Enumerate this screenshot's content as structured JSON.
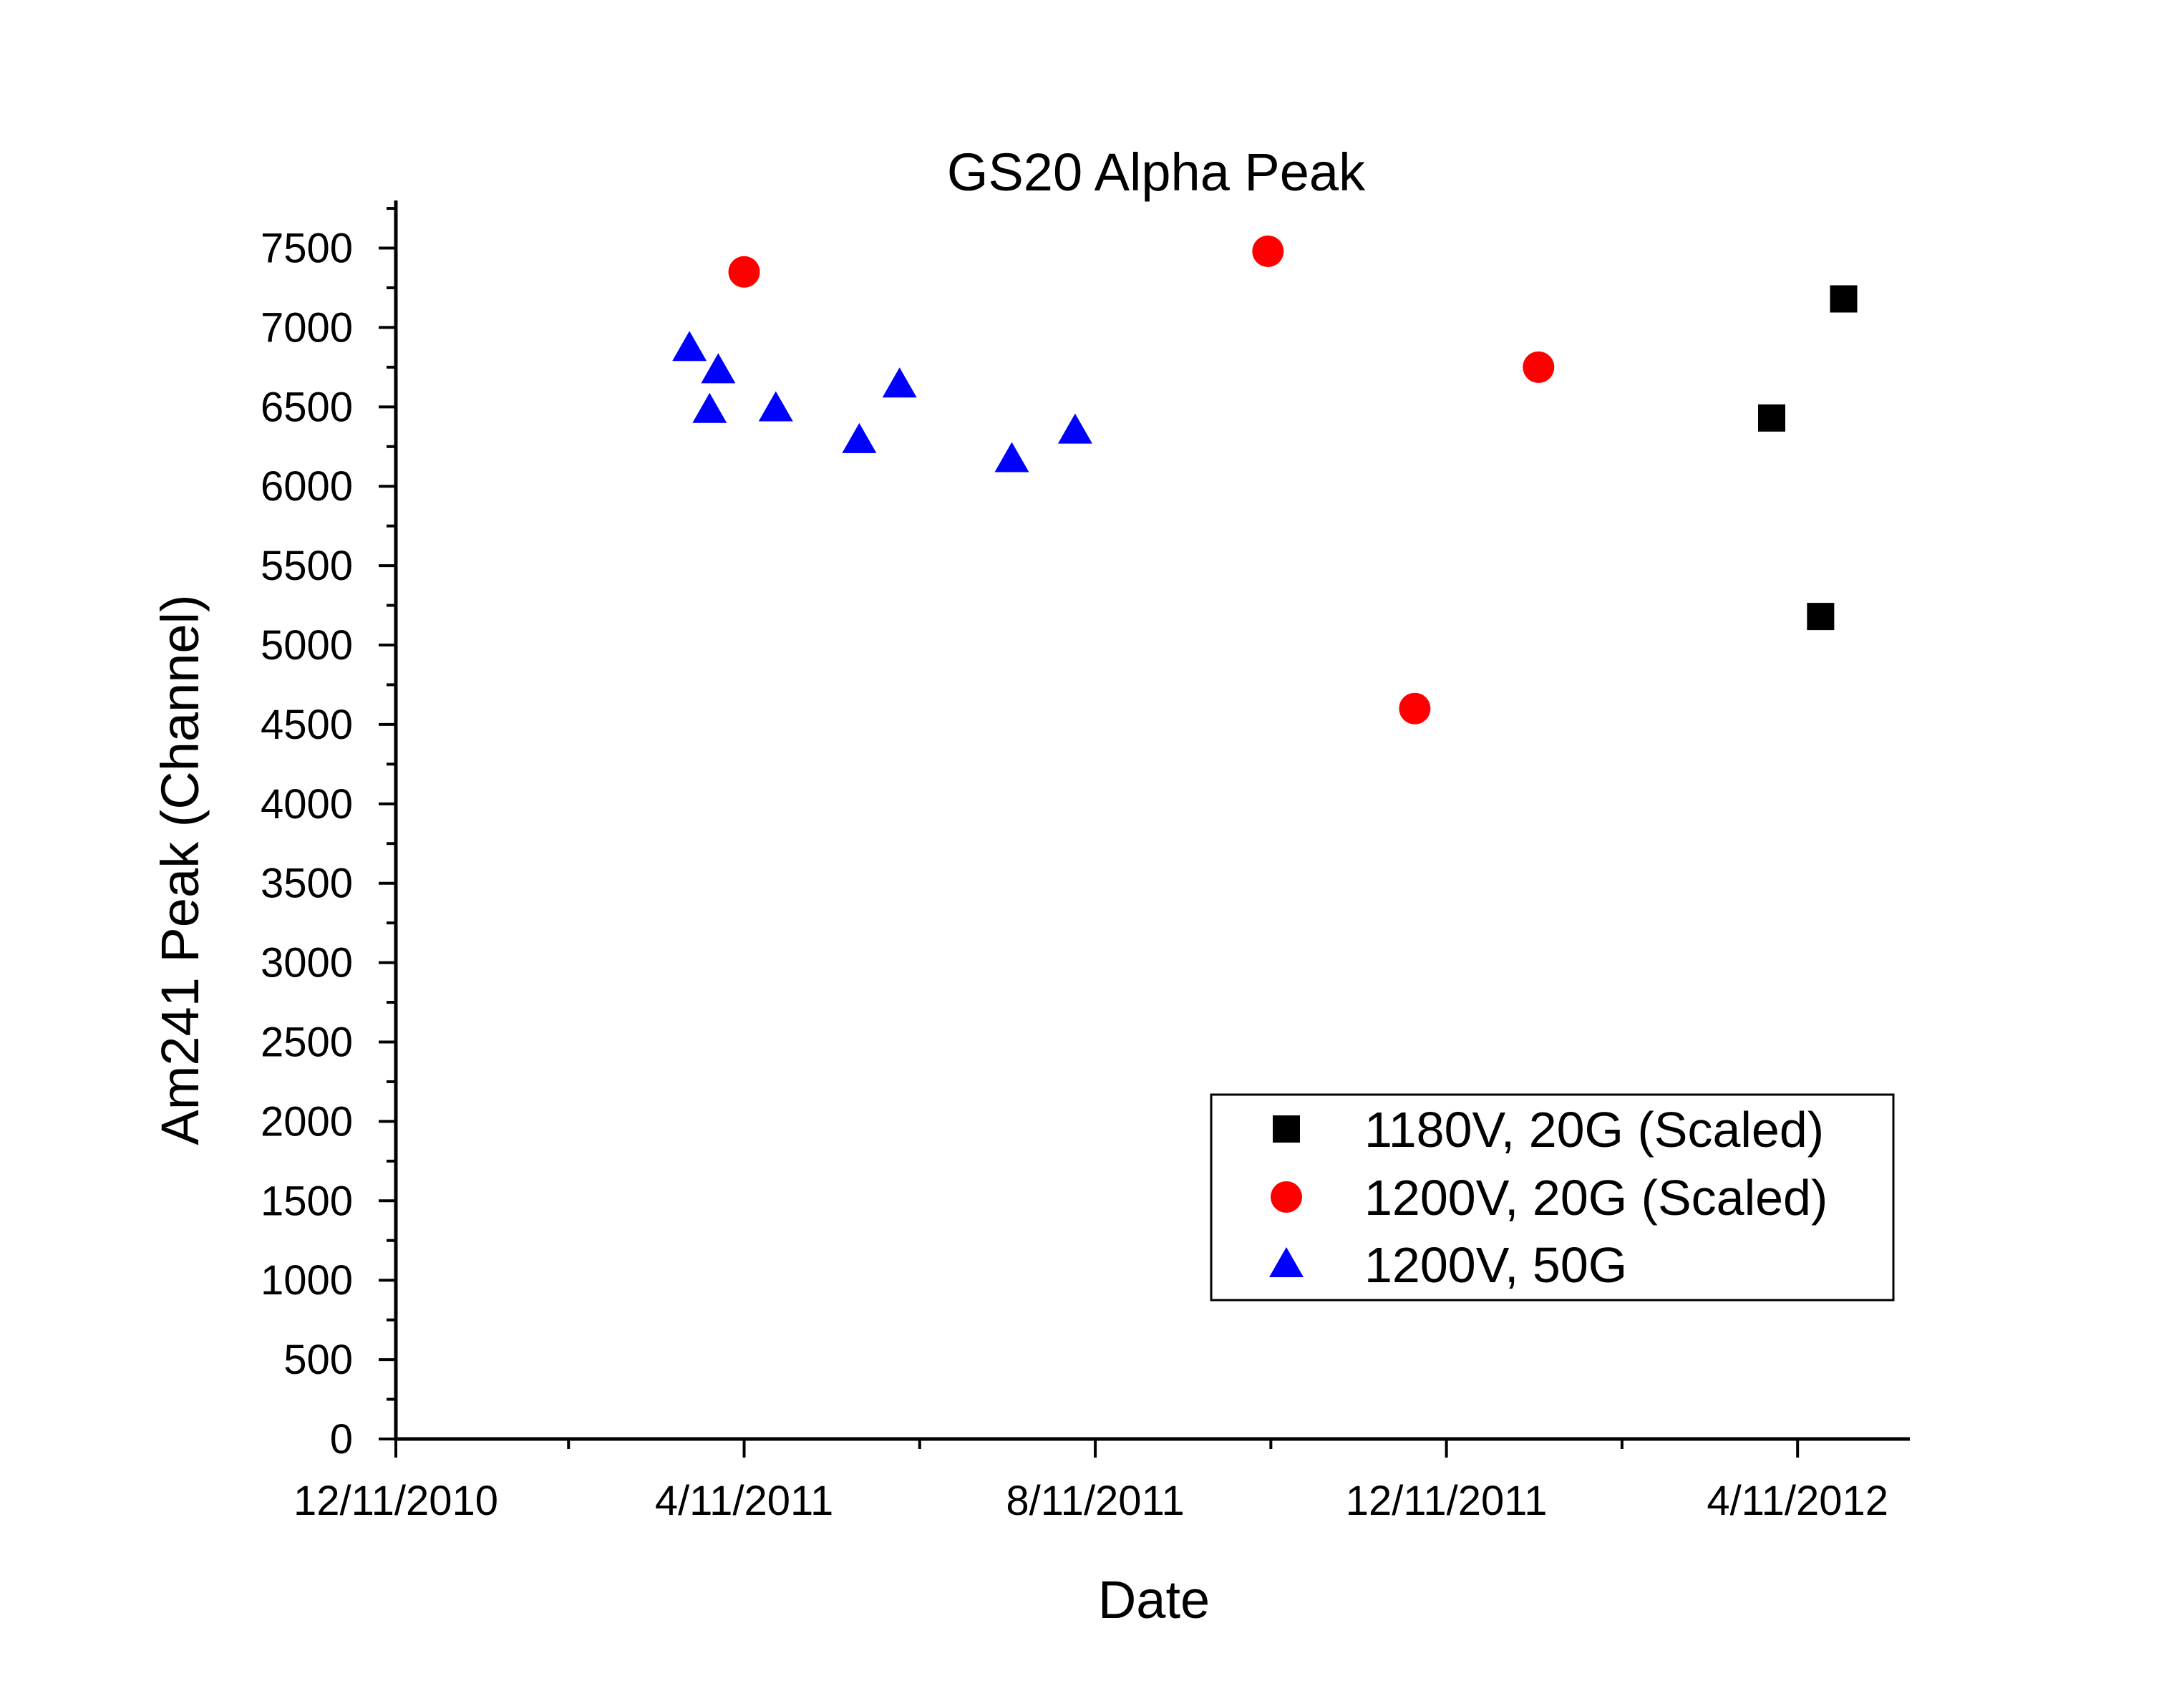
{
  "chart_data": {
    "type": "scatter",
    "title": "GS20 Alpha Peak",
    "xlabel": "Date",
    "ylabel": "Am241 Peak (Channel)",
    "x_axis_type": "date",
    "xlim": [
      "2010-12-11",
      "2012-05-20"
    ],
    "ylim": [
      0,
      7800
    ],
    "x_ticks": [
      {
        "date": "2010-12-11",
        "label": "12/11/2010"
      },
      {
        "date": "2011-04-11",
        "label": "4/11/2011"
      },
      {
        "date": "2011-08-11",
        "label": "8/11/2011"
      },
      {
        "date": "2011-12-11",
        "label": "12/11/2011"
      },
      {
        "date": "2012-04-11",
        "label": "4/11/2012"
      }
    ],
    "x_minor_ticks": [
      "2011-02-09",
      "2011-06-11",
      "2011-10-11",
      "2012-02-10"
    ],
    "y_ticks": [
      0,
      500,
      1000,
      1500,
      2000,
      2500,
      3000,
      3500,
      4000,
      4500,
      5000,
      5500,
      6000,
      6500,
      7000,
      7500
    ],
    "grid": false,
    "legend_position": "lower-right",
    "series": [
      {
        "name": "1180V, 20G (Scaled)",
        "marker": "square",
        "color": "#000000",
        "points": [
          {
            "x": "2012-04-02",
            "y": 6430
          },
          {
            "x": "2012-04-19",
            "y": 5180
          },
          {
            "x": "2012-04-27",
            "y": 7180
          }
        ]
      },
      {
        "name": "1200V, 20G (Scaled)",
        "marker": "circle",
        "color": "#ff0000",
        "points": [
          {
            "x": "2011-04-11",
            "y": 7350
          },
          {
            "x": "2011-10-10",
            "y": 7480
          },
          {
            "x": "2011-11-30",
            "y": 4600
          },
          {
            "x": "2012-01-12",
            "y": 6750
          }
        ]
      },
      {
        "name": "1200V, 50G",
        "marker": "triangle",
        "color": "#0000ff",
        "points": [
          {
            "x": "2011-03-23",
            "y": 6870
          },
          {
            "x": "2011-03-30",
            "y": 6480
          },
          {
            "x": "2011-04-02",
            "y": 6730
          },
          {
            "x": "2011-04-22",
            "y": 6490
          },
          {
            "x": "2011-05-21",
            "y": 6290
          },
          {
            "x": "2011-06-04",
            "y": 6640
          },
          {
            "x": "2011-07-13",
            "y": 6170
          },
          {
            "x": "2011-08-04",
            "y": 6350
          }
        ]
      }
    ]
  }
}
